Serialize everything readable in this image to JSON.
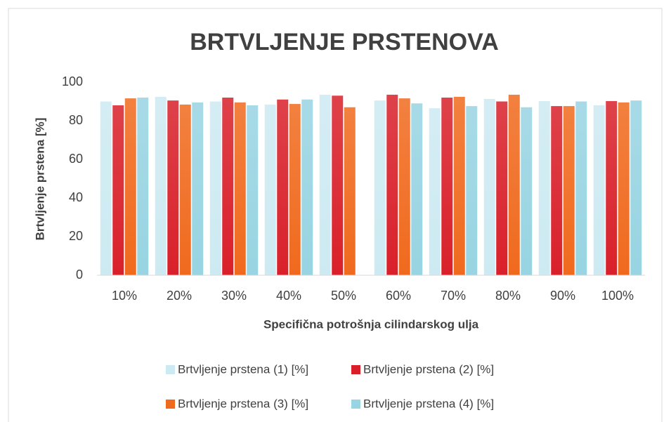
{
  "chart_data": {
    "type": "bar",
    "title": "BRTVLJENJE PRSTENOVA",
    "x_label": "Specifična potrošnja cilindarskog ulja",
    "y_label": "Brtvljenje prstena [%]",
    "categories": [
      "10%",
      "20%",
      "30%",
      "40%",
      "50%",
      "60%",
      "70%",
      "80%",
      "90%",
      "100%"
    ],
    "series": [
      {
        "name": "Brtvljenje prstena (1) [%]",
        "color": "#cdeaf2",
        "values": [
          90,
          92.4,
          90,
          88.4,
          93.5,
          90.5,
          86.5,
          91.3,
          90.2,
          88
        ]
      },
      {
        "name": "Brtvljenje prstena (2) [%]",
        "color": "#d9202a",
        "values": [
          88,
          90.5,
          92,
          91,
          93,
          93.5,
          92,
          90,
          87.6,
          90.2
        ]
      },
      {
        "name": "Brtvljenje prstena (3) [%]",
        "color": "#f06a1e",
        "values": [
          91.6,
          88.4,
          89.5,
          88.7,
          87,
          91.6,
          92.4,
          93.5,
          87.6,
          89.5
        ]
      },
      {
        "name": "Brtvljenje prstena (4) [%]",
        "color": "#98d4e2",
        "values": [
          92,
          89.5,
          88,
          91,
          null,
          89,
          87.6,
          87,
          90,
          90.5
        ]
      }
    ],
    "ylim": [
      0,
      100
    ],
    "yticks": [
      0,
      20,
      40,
      60,
      80,
      100
    ],
    "grid": false
  }
}
